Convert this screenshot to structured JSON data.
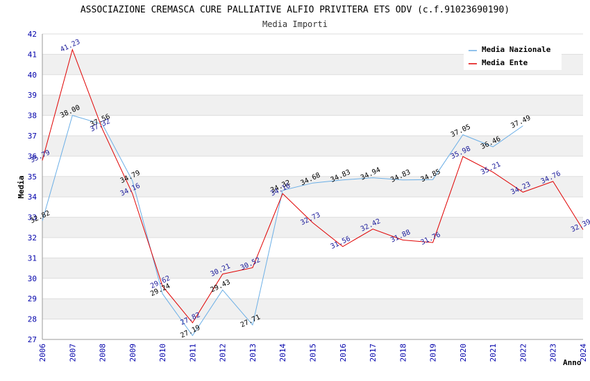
{
  "chart_data": {
    "type": "line",
    "title": "ASSOCIAZIONE CREMASCA CURE PALLIATIVE ALFIO PRIVITERA ETS ODV (c.f.91023690190)",
    "subtitle": "Media Importi",
    "xlabel": "Anno",
    "ylabel": "Media",
    "ylim": [
      27,
      42
    ],
    "yticks": [
      27,
      28,
      29,
      30,
      31,
      32,
      33,
      34,
      35,
      36,
      37,
      38,
      39,
      40,
      41,
      42
    ],
    "x": [
      2006,
      2007,
      2008,
      2009,
      2010,
      2011,
      2012,
      2013,
      2014,
      2015,
      2016,
      2017,
      2018,
      2019,
      2020,
      2021,
      2022,
      2023,
      2024
    ],
    "x_labels": [
      "2006",
      "2007",
      "2008",
      "2009",
      "2010",
      "2011",
      "2012",
      "2013",
      "2014",
      "2015",
      "2016",
      "2017",
      "2018",
      "2019",
      "2020",
      "2021",
      "2022",
      "2023",
      "2024"
    ],
    "grid": "horizontal-bands",
    "legend_position": "top-right",
    "series": [
      {
        "name": "Media Nazionale",
        "color": "#6aaee6",
        "values": [
          32.82,
          38.0,
          37.56,
          34.79,
          29.24,
          27.19,
          29.43,
          27.71,
          34.32,
          34.68,
          34.83,
          34.94,
          34.83,
          34.85,
          37.05,
          36.46,
          37.49,
          null,
          null
        ],
        "labels": [
          "32.82",
          "38.00",
          "37.56",
          "34.79",
          "29.24",
          "27.19",
          "29.43",
          "27.71",
          "34.32",
          "34.68",
          "34.83",
          "34.94",
          "34.83",
          "34.85",
          "37.05",
          "36.46",
          "37.49",
          null,
          null
        ]
      },
      {
        "name": "Media Ente",
        "color": "#e00000",
        "values": [
          35.79,
          41.23,
          37.32,
          34.16,
          29.62,
          27.82,
          30.21,
          30.52,
          34.16,
          32.73,
          31.56,
          32.42,
          31.88,
          31.76,
          35.98,
          35.21,
          34.23,
          34.76,
          32.39
        ],
        "labels": [
          "35.79",
          "41.23",
          "37.32",
          "34.16",
          "29.62",
          "27.82",
          "30.21",
          "30.52",
          "34.16",
          "32.73",
          "31.56",
          "32.42",
          "31.88",
          "31.76",
          "35.98",
          "35.21",
          "34.23",
          "34.76",
          "32.39"
        ]
      }
    ]
  }
}
